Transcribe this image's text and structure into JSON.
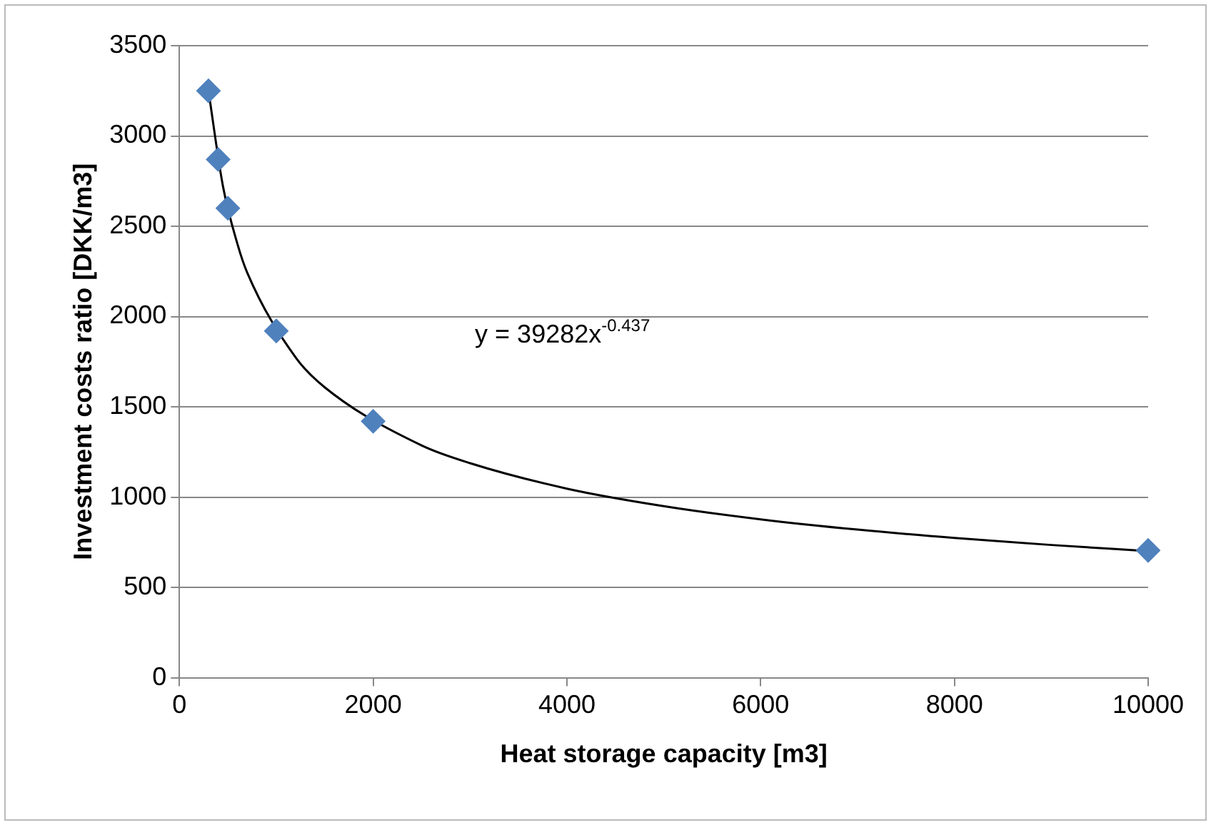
{
  "chart_data": {
    "type": "scatter",
    "xlabel": "Heat storage capacity [m3]",
    "ylabel": "Investment costs ratio [DKK/m3]",
    "series": [
      {
        "type": "scatter",
        "color": "#4f81bd",
        "marker": "diamond",
        "x": [
          300,
          400,
          500,
          1000,
          2000,
          10000
        ],
        "values": [
          3250,
          2870,
          2600,
          1920,
          1420,
          705
        ]
      },
      {
        "type": "line",
        "color": "#000000",
        "marker": "none",
        "line_style": "solid",
        "x": [
          300,
          450,
          600,
          700,
          1200,
          1500,
          2500,
          3000,
          4000,
          5000,
          6000,
          7000,
          8000,
          9000,
          10000
        ],
        "values": [
          3249,
          2720,
          2400,
          2243,
          1773,
          1608,
          1286,
          1188,
          1047,
          950,
          877,
          820,
          774,
          735,
          701
        ]
      }
    ],
    "annotations": [
      "y = 39282x$^{-0.437}$"
    ],
    "xlim": [
      0,
      10000
    ],
    "xticks": [
      0,
      2000,
      4000,
      6000,
      8000,
      10000
    ],
    "ylim": [
      0,
      3500
    ],
    "yticks": [
      0,
      500,
      1000,
      1500,
      2000,
      2500,
      3000,
      3500
    ],
    "grid": "y",
    "legend": false
  }
}
